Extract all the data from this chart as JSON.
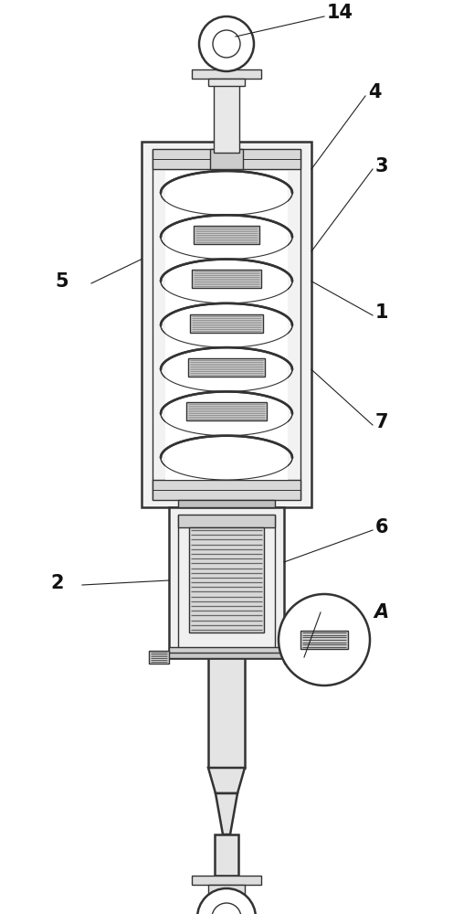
{
  "fig_width": 4.96,
  "fig_height": 10.0,
  "dpi": 100,
  "bg_color": "#ffffff",
  "line_color": "#333333",
  "lw": 1.0,
  "label_fontsize": 15,
  "label_fontweight": "bold",
  "ann_lw": 0.8,
  "ann_color": "#222222"
}
